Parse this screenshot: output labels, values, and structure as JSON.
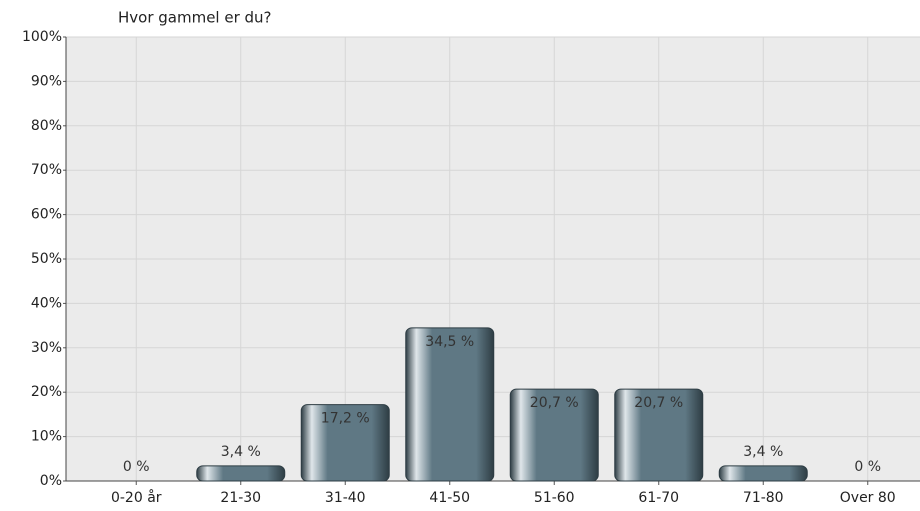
{
  "chart_data": {
    "type": "bar",
    "title": "Hvor gammel er du?",
    "categories": [
      "0-20 år",
      "21-30",
      "31-40",
      "41-50",
      "51-60",
      "61-70",
      "71-80",
      "Over 80"
    ],
    "values": [
      0,
      3.4,
      17.2,
      34.5,
      20.7,
      20.7,
      3.4,
      0
    ],
    "value_labels": [
      "0 %",
      "3,4 %",
      "17,2 %",
      "34,5 %",
      "20,7 %",
      "20,7 %",
      "3,4 %",
      "0 %"
    ],
    "color": "#5f7884",
    "ylim": [
      0,
      100
    ],
    "yticks": [
      {
        "value": 0,
        "label": "0%"
      },
      {
        "value": 10,
        "label": "10%"
      },
      {
        "value": 20,
        "label": "20%"
      },
      {
        "value": 30,
        "label": "30%"
      },
      {
        "value": 40,
        "label": "40%"
      },
      {
        "value": 50,
        "label": "50%"
      },
      {
        "value": 60,
        "label": "60%"
      },
      {
        "value": 70,
        "label": "70%"
      },
      {
        "value": 80,
        "label": "80%"
      },
      {
        "value": 90,
        "label": "90%"
      },
      {
        "value": 100,
        "label": "100%"
      }
    ],
    "grid": true
  }
}
